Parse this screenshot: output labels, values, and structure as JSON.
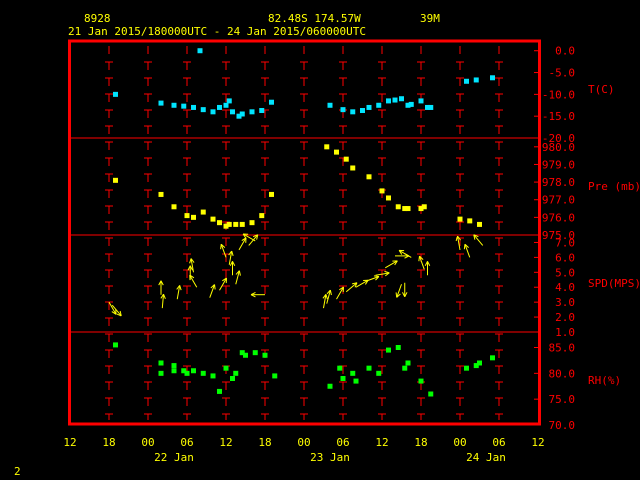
{
  "header": {
    "station_id": "8928",
    "location": "82.48S   174.57W",
    "elevation": "39M",
    "period": "21 Jan 2015/180000UTC - 24 Jan 2015/060000UTC"
  },
  "footer": {
    "page_number": "2"
  },
  "colors": {
    "background": "#000000",
    "frame": "#ff0000",
    "grid_marks": "#ff0000",
    "axis_text": "#ffff00",
    "header_text": "#ffff00",
    "temperature": "#00e5ff",
    "pressure": "#ffff00",
    "wind": "#ffff00",
    "humidity": "#00ff00",
    "panel_label": "#ff0000"
  },
  "chart_data": {
    "type": "scatter",
    "x_unit": "hours since 21 Jan 2015 00UTC",
    "x_range": [
      12,
      84
    ],
    "x_ticks": [
      {
        "hour": 12,
        "label": "12"
      },
      {
        "hour": 18,
        "label": "18"
      },
      {
        "hour": 24,
        "label": "00"
      },
      {
        "hour": 30,
        "label": "06"
      },
      {
        "hour": 36,
        "label": "12"
      },
      {
        "hour": 42,
        "label": "18"
      },
      {
        "hour": 48,
        "label": "00"
      },
      {
        "hour": 54,
        "label": "06"
      },
      {
        "hour": 60,
        "label": "12"
      },
      {
        "hour": 66,
        "label": "18"
      },
      {
        "hour": 72,
        "label": "00"
      },
      {
        "hour": 78,
        "label": "06"
      },
      {
        "hour": 84,
        "label": "12"
      }
    ],
    "date_labels": [
      {
        "hour": 28,
        "label": "22 Jan"
      },
      {
        "hour": 52,
        "label": "23 Jan"
      },
      {
        "hour": 76,
        "label": "24 Jan"
      }
    ],
    "panels": [
      {
        "id": "temperature",
        "label": "T(C)",
        "ylim": [
          -20,
          2
        ],
        "y_ticks": [
          {
            "v": 0,
            "label": "0.0"
          },
          {
            "v": -5,
            "label": "-5.0"
          },
          {
            "v": -10,
            "label": "-10.0"
          },
          {
            "v": -15,
            "label": "-15.0"
          },
          {
            "v": -20,
            "label": "-20.0"
          }
        ],
        "points": [
          [
            19,
            -10
          ],
          [
            26,
            -12
          ],
          [
            28,
            -12.5
          ],
          [
            29.5,
            -12.7
          ],
          [
            31,
            -13
          ],
          [
            32.5,
            -13.5
          ],
          [
            34,
            -14
          ],
          [
            35,
            -13
          ],
          [
            36,
            -12.5
          ],
          [
            36.5,
            -11.5
          ],
          [
            37,
            -14
          ],
          [
            38,
            -15
          ],
          [
            38.5,
            -14.5
          ],
          [
            40,
            -14
          ],
          [
            41.5,
            -13.7
          ],
          [
            43,
            -11.8
          ],
          [
            52,
            -12.5
          ],
          [
            54,
            -13.5
          ],
          [
            55.5,
            -14
          ],
          [
            57,
            -13.7
          ],
          [
            58,
            -13
          ],
          [
            59.5,
            -12.5
          ],
          [
            61,
            -11.5
          ],
          [
            62,
            -11.3
          ],
          [
            63,
            -11
          ],
          [
            64,
            -12.5
          ],
          [
            64.5,
            -12.3
          ],
          [
            66,
            -11.5
          ],
          [
            67,
            -13
          ],
          [
            67.5,
            -13
          ],
          [
            73,
            -7
          ],
          [
            74.5,
            -6.7
          ],
          [
            77,
            -6.2
          ],
          [
            32,
            0
          ]
        ]
      },
      {
        "id": "pressure",
        "label": "Pre (mb)",
        "ylim": [
          975,
          980.5
        ],
        "y_ticks": [
          {
            "v": 975,
            "label": "975.0"
          },
          {
            "v": 976,
            "label": "976.0"
          },
          {
            "v": 977,
            "label": "977.0"
          },
          {
            "v": 978,
            "label": "978.0"
          },
          {
            "v": 979,
            "label": "979.0"
          },
          {
            "v": 980,
            "label": "980.0"
          }
        ],
        "points": [
          [
            19,
            978.1
          ],
          [
            26,
            977.3
          ],
          [
            28,
            976.6
          ],
          [
            30,
            976.1
          ],
          [
            31,
            976
          ],
          [
            32.5,
            976.3
          ],
          [
            34,
            975.9
          ],
          [
            35,
            975.7
          ],
          [
            36,
            975.5
          ],
          [
            36.5,
            975.6
          ],
          [
            37.5,
            975.6
          ],
          [
            38.5,
            975.6
          ],
          [
            40,
            975.7
          ],
          [
            41.5,
            976.1
          ],
          [
            43,
            977.3
          ],
          [
            51.5,
            980
          ],
          [
            53,
            979.7
          ],
          [
            54.5,
            979.3
          ],
          [
            55.5,
            978.8
          ],
          [
            58,
            978.3
          ],
          [
            60,
            977.5
          ],
          [
            61,
            977.1
          ],
          [
            62.5,
            976.6
          ],
          [
            63.5,
            976.5
          ],
          [
            64,
            976.5
          ],
          [
            66,
            976.5
          ],
          [
            66.5,
            976.6
          ],
          [
            72,
            975.9
          ],
          [
            73.5,
            975.8
          ],
          [
            75,
            975.6
          ]
        ]
      },
      {
        "id": "wind_speed",
        "label": "SPD(MPS)",
        "ylim": [
          1,
          7.5
        ],
        "y_ticks": [
          {
            "v": 1,
            "label": "1.0"
          },
          {
            "v": 2,
            "label": "2.0"
          },
          {
            "v": 3,
            "label": "3.0"
          },
          {
            "v": 4,
            "label": "4.0"
          },
          {
            "v": 5,
            "label": "5.0"
          },
          {
            "v": 6,
            "label": "6.0"
          },
          {
            "v": 7,
            "label": "7.0"
          }
        ],
        "arrows": [
          {
            "h": 18,
            "v": 3.0,
            "dir": 150
          },
          {
            "h": 18.5,
            "v": 2.8,
            "dir": 140
          },
          {
            "h": 26,
            "v": 3.5,
            "dir": 0
          },
          {
            "h": 26.2,
            "v": 2.6,
            "dir": 5
          },
          {
            "h": 28.5,
            "v": 3.2,
            "dir": 10
          },
          {
            "h": 30.5,
            "v": 4.5,
            "dir": 0
          },
          {
            "h": 31,
            "v": 5.0,
            "dir": 350
          },
          {
            "h": 31.5,
            "v": 4.0,
            "dir": 330
          },
          {
            "h": 33.5,
            "v": 3.3,
            "dir": 20
          },
          {
            "h": 35,
            "v": 3.8,
            "dir": 30
          },
          {
            "h": 36,
            "v": 6.0,
            "dir": 340
          },
          {
            "h": 36.5,
            "v": 5.5,
            "dir": 10
          },
          {
            "h": 37,
            "v": 4.8,
            "dir": 0
          },
          {
            "h": 37.5,
            "v": 4.2,
            "dir": 15
          },
          {
            "h": 38,
            "v": 6.5,
            "dir": 30
          },
          {
            "h": 39.5,
            "v": 6.8,
            "dir": 40
          },
          {
            "h": 40.5,
            "v": 7.1,
            "dir": 300
          },
          {
            "h": 42,
            "v": 3.5,
            "dir": 270
          },
          {
            "h": 51,
            "v": 2.6,
            "dir": 10
          },
          {
            "h": 51.5,
            "v": 2.9,
            "dir": 15
          },
          {
            "h": 53,
            "v": 3.2,
            "dir": 30
          },
          {
            "h": 54.5,
            "v": 3.7,
            "dir": 50
          },
          {
            "h": 56,
            "v": 4.0,
            "dir": 60
          },
          {
            "h": 57.5,
            "v": 4.4,
            "dir": 70
          },
          {
            "h": 59,
            "v": 4.8,
            "dir": 80
          },
          {
            "h": 60.5,
            "v": 5.3,
            "dir": 60
          },
          {
            "h": 62,
            "v": 6.1,
            "dir": 90
          },
          {
            "h": 63,
            "v": 4.2,
            "dir": 200
          },
          {
            "h": 63.5,
            "v": 4.3,
            "dir": 180
          },
          {
            "h": 64.5,
            "v": 6.0,
            "dir": 300
          },
          {
            "h": 66.5,
            "v": 5.2,
            "dir": 340
          },
          {
            "h": 67,
            "v": 4.8,
            "dir": 0
          },
          {
            "h": 72,
            "v": 6.5,
            "dir": 350
          },
          {
            "h": 73.5,
            "v": 6.0,
            "dir": 340
          },
          {
            "h": 75.5,
            "v": 6.8,
            "dir": 320
          }
        ]
      },
      {
        "id": "humidity",
        "label": "RH(%)",
        "ylim": [
          70,
          88
        ],
        "y_ticks": [
          {
            "v": 70,
            "label": "70.0"
          },
          {
            "v": 75,
            "label": "75.0"
          },
          {
            "v": 80,
            "label": "80.0"
          },
          {
            "v": 85,
            "label": "85.0"
          }
        ],
        "points": [
          [
            19,
            85.5
          ],
          [
            26,
            82
          ],
          [
            26,
            80
          ],
          [
            28,
            81.5
          ],
          [
            28,
            80.5
          ],
          [
            29.5,
            80.5
          ],
          [
            30,
            80
          ],
          [
            31,
            80.5
          ],
          [
            32.5,
            80
          ],
          [
            34,
            79.5
          ],
          [
            35,
            76.5
          ],
          [
            36,
            81
          ],
          [
            37,
            79
          ],
          [
            37.5,
            80
          ],
          [
            38.5,
            84
          ],
          [
            39,
            83.5
          ],
          [
            40.5,
            84
          ],
          [
            42,
            83.5
          ],
          [
            43.5,
            79.5
          ],
          [
            52,
            77.5
          ],
          [
            53.5,
            81
          ],
          [
            54,
            79
          ],
          [
            55.5,
            80
          ],
          [
            56,
            78.5
          ],
          [
            58,
            81
          ],
          [
            59.5,
            80
          ],
          [
            61,
            84.5
          ],
          [
            62.5,
            85
          ],
          [
            63.5,
            81
          ],
          [
            64,
            82
          ],
          [
            66,
            78.5
          ],
          [
            67.5,
            76
          ],
          [
            73,
            81
          ],
          [
            74.5,
            81.5
          ],
          [
            75,
            82
          ],
          [
            77,
            83
          ]
        ]
      }
    ]
  }
}
